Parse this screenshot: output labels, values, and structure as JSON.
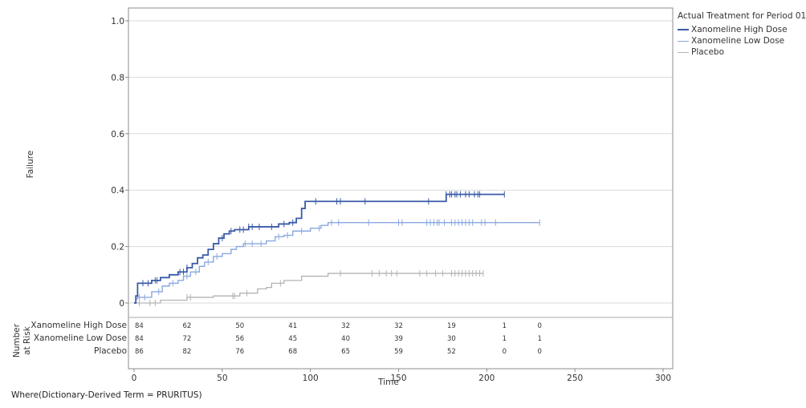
{
  "chart_data": {
    "type": "line",
    "step": true,
    "title": "",
    "xlabel": "Time",
    "ylabel": "Failure",
    "xlim": [
      0,
      300
    ],
    "ylim": [
      0,
      1.05
    ],
    "xticks": [
      0,
      50,
      100,
      150,
      200,
      250,
      300
    ],
    "yticks": [
      0,
      0.2,
      0.4,
      0.6,
      0.8,
      1.0
    ],
    "ytick_labels": [
      "0",
      "0.2",
      "0.4",
      "0.6",
      "0.8",
      "1.0"
    ],
    "grid": true,
    "legend_title": "Actual Treatment for Period 01",
    "legend_position": "right",
    "series": [
      {
        "name": "Xanomeline High Dose",
        "color": "#3a5ba8",
        "stroke_width": 1.8,
        "x": [
          0,
          1,
          2,
          10,
          15,
          20,
          25,
          30,
          33,
          36,
          39,
          42,
          45,
          48,
          51,
          54,
          57,
          65,
          68,
          75,
          82,
          88,
          92,
          95,
          97,
          120,
          140,
          160,
          175,
          177,
          190,
          210
        ],
        "y": [
          0,
          0.025,
          0.07,
          0.08,
          0.09,
          0.1,
          0.11,
          0.125,
          0.14,
          0.16,
          0.17,
          0.19,
          0.21,
          0.23,
          0.245,
          0.255,
          0.26,
          0.27,
          0.27,
          0.27,
          0.28,
          0.285,
          0.3,
          0.335,
          0.36,
          0.36,
          0.36,
          0.36,
          0.36,
          0.385,
          0.385,
          0.385
        ],
        "censored_x": [
          5,
          8,
          12,
          13,
          26,
          28,
          30,
          50,
          55,
          60,
          62,
          65,
          67,
          71,
          78,
          85,
          90,
          103,
          115,
          117,
          131,
          167,
          177,
          179,
          180,
          182,
          183,
          185,
          188,
          190,
          193,
          195,
          196,
          210
        ],
        "at_risk": [
          "84",
          "62",
          "50",
          "41",
          "32",
          "32",
          "19",
          "1",
          "0"
        ]
      },
      {
        "name": "Xanomeline Low Dose",
        "color": "#8aa8e0",
        "stroke_width": 1.4,
        "x": [
          0,
          1,
          2,
          5,
          10,
          16,
          20,
          25,
          28,
          32,
          37,
          40,
          45,
          50,
          55,
          58,
          62,
          75,
          80,
          85,
          90,
          100,
          106,
          110,
          230
        ],
        "y": [
          0,
          0.015,
          0.02,
          0.02,
          0.04,
          0.06,
          0.07,
          0.08,
          0.095,
          0.11,
          0.13,
          0.145,
          0.165,
          0.175,
          0.19,
          0.2,
          0.21,
          0.22,
          0.235,
          0.24,
          0.255,
          0.265,
          0.275,
          0.285,
          0.285
        ],
        "censored_x": [
          3,
          6,
          14,
          22,
          30,
          35,
          42,
          47,
          63,
          67,
          72,
          82,
          87,
          95,
          105,
          112,
          116,
          133,
          150,
          152,
          166,
          168,
          170,
          172,
          173,
          176,
          180,
          182,
          184,
          186,
          188,
          190,
          192,
          197,
          199,
          205,
          230
        ],
        "at_risk": [
          "84",
          "72",
          "56",
          "45",
          "40",
          "39",
          "30",
          "1",
          "1"
        ]
      },
      {
        "name": "Placebo",
        "color": "#b3b3b3",
        "stroke_width": 1.3,
        "x": [
          0,
          15,
          30,
          45,
          60,
          70,
          75,
          78,
          85,
          95,
          110,
          198
        ],
        "y": [
          0,
          0.01,
          0.02,
          0.025,
          0.035,
          0.05,
          0.055,
          0.07,
          0.08,
          0.095,
          0.105,
          0.105
        ],
        "censored_x": [
          3,
          9,
          12,
          30,
          32,
          56,
          57,
          64,
          83,
          117,
          135,
          139,
          143,
          146,
          149,
          162,
          166,
          171,
          175,
          180,
          182,
          184,
          186,
          188,
          190,
          192,
          194,
          196,
          198
        ],
        "at_risk": [
          "86",
          "82",
          "76",
          "68",
          "65",
          "59",
          "52",
          "0",
          "0"
        ]
      }
    ],
    "at_risk_table": {
      "header": "Number at Risk",
      "time_points": [
        0,
        30,
        60,
        90,
        120,
        150,
        180,
        210,
        230
      ]
    }
  },
  "footnote": "Where(Dictionary-Derived Term = PRURITUS)"
}
